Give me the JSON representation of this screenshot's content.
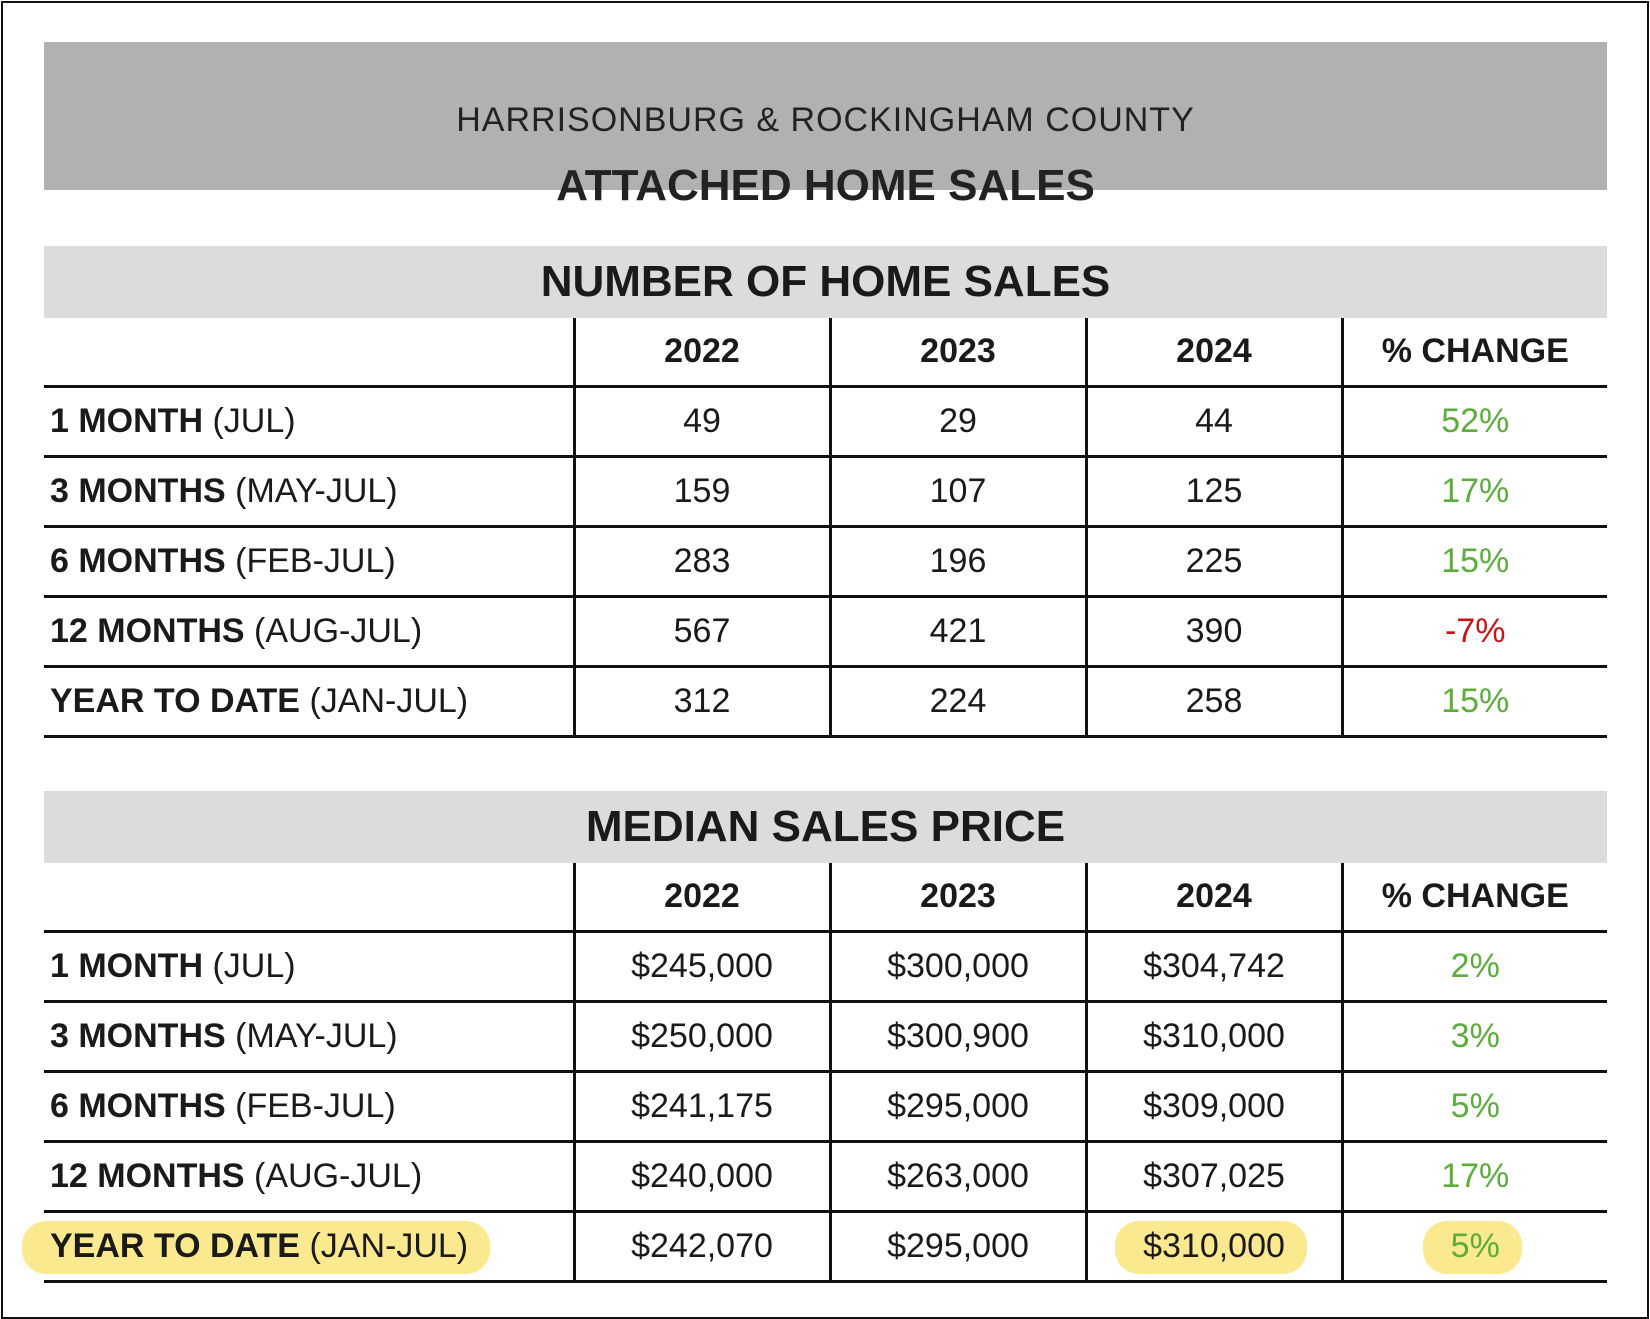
{
  "header": {
    "subtitle": "HARRISONBURG & ROCKINGHAM COUNTY",
    "title": "ATTACHED HOME SALES"
  },
  "sales": {
    "title": "NUMBER OF HOME SALES",
    "columns": [
      "2022",
      "2023",
      "2024",
      "% CHANGE"
    ],
    "rows": [
      {
        "period": "1 MONTH",
        "range": "(JUL)",
        "v2022": "49",
        "v2023": "29",
        "v2024": "44",
        "change": "52%"
      },
      {
        "period": "3 MONTHS",
        "range": "(MAY-JUL)",
        "v2022": "159",
        "v2023": "107",
        "v2024": "125",
        "change": "17%"
      },
      {
        "period": "6 MONTHS",
        "range": "(FEB-JUL)",
        "v2022": "283",
        "v2023": "196",
        "v2024": "225",
        "change": "15%"
      },
      {
        "period": "12 MONTHS",
        "range": "(AUG-JUL)",
        "v2022": "567",
        "v2023": "421",
        "v2024": "390",
        "change": "-7%"
      },
      {
        "period": "YEAR TO DATE",
        "range": "(JAN-JUL)",
        "v2022": "312",
        "v2023": "224",
        "v2024": "258",
        "change": "15%"
      }
    ]
  },
  "prices": {
    "title": "MEDIAN SALES PRICE",
    "columns": [
      "2022",
      "2023",
      "2024",
      "% CHANGE"
    ],
    "rows": [
      {
        "period": "1 MONTH",
        "range": "(JUL)",
        "v2022": "$245,000",
        "v2023": "$300,000",
        "v2024": "$304,742",
        "change": "2%"
      },
      {
        "period": "3 MONTHS",
        "range": "(MAY-JUL)",
        "v2022": "$250,000",
        "v2023": "$300,900",
        "v2024": "$310,000",
        "change": "3%"
      },
      {
        "period": "6 MONTHS",
        "range": "(FEB-JUL)",
        "v2022": "$241,175",
        "v2023": "$295,000",
        "v2024": "$309,000",
        "change": "5%"
      },
      {
        "period": "12 MONTHS",
        "range": "(AUG-JUL)",
        "v2022": "$240,000",
        "v2023": "$263,000",
        "v2024": "$307,025",
        "change": "17%"
      },
      {
        "period": "YEAR TO DATE",
        "range": "(JAN-JUL)",
        "v2022": "$242,070",
        "v2023": "$295,000",
        "v2024": "$310,000",
        "change": "5%"
      }
    ]
  },
  "colors": {
    "positive": "#5cad3b",
    "negative": "#c81414",
    "highlight": "#fbe98f",
    "banner": "#b1b1b3",
    "section_header": "#dcdcde"
  }
}
